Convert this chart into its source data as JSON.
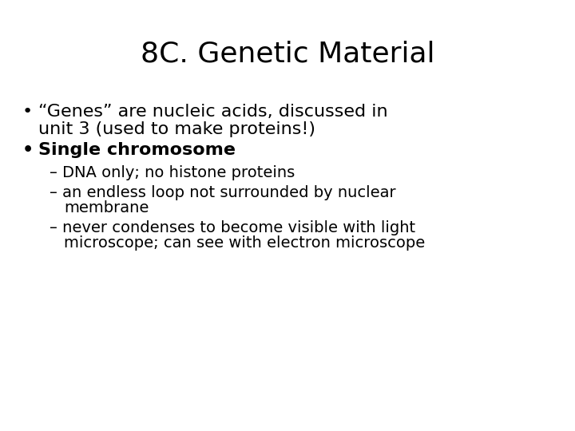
{
  "title": "8C. Genetic Material",
  "background_color": "#ffffff",
  "text_color": "#000000",
  "title_fontsize": 26,
  "body_fontsize": 16,
  "sub_fontsize": 14,
  "bullet1_line1": "“Genes” are nucleic acids, discussed in",
  "bullet1_line2": "unit 3 (used to make proteins!)",
  "bullet2_text": "Single chromosome",
  "sub1_text": "– DNA only; no histone proteins",
  "sub2_line1": "– an endless loop not surrounded by nuclear",
  "sub2_line2": "   membrane",
  "sub3_line1": "– never condenses to become visible with light",
  "sub3_line2": "   microscope; can see with electron microscope"
}
